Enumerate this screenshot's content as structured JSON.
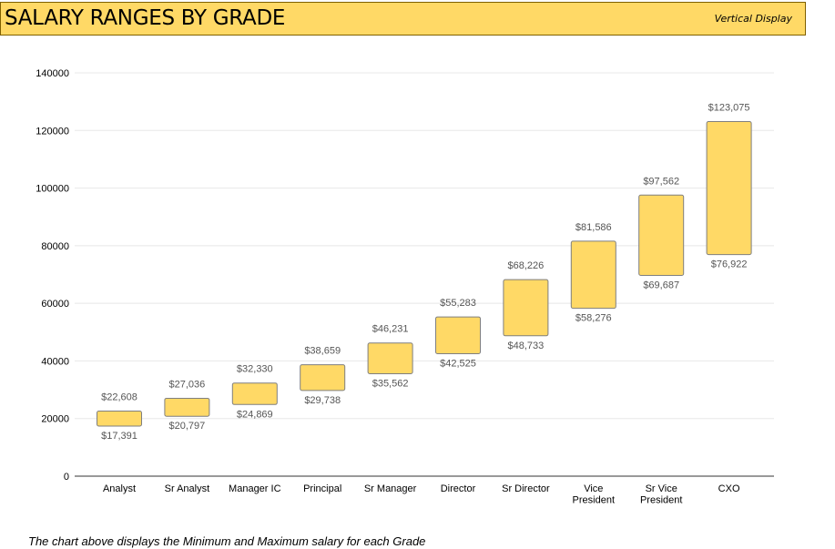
{
  "header": {
    "title": "SALARY RANGES BY GRADE",
    "display_mode": "Vertical Display"
  },
  "caption": "The chart above displays the Minimum and Maximum salary for each Grade",
  "chart_data": {
    "type": "bar",
    "subtype": "floating-range",
    "categories": [
      [
        "Analyst"
      ],
      [
        "Sr Analyst"
      ],
      [
        "Manager IC"
      ],
      [
        "Principal"
      ],
      [
        "Sr Manager"
      ],
      [
        "Director"
      ],
      [
        "Sr Director"
      ],
      [
        "Vice",
        "President"
      ],
      [
        "Sr Vice",
        "President"
      ],
      [
        "CXO"
      ]
    ],
    "series": [
      {
        "name": "Minimum",
        "values": [
          17391,
          20797,
          24869,
          29738,
          35562,
          42525,
          48733,
          58276,
          69687,
          76922
        ]
      },
      {
        "name": "Maximum",
        "values": [
          22608,
          27036,
          32330,
          38659,
          46231,
          55283,
          68226,
          81586,
          97562,
          123075
        ]
      }
    ],
    "min_labels": [
      "$17,391",
      "$20,797",
      "$24,869",
      "$29,738",
      "$35,562",
      "$42,525",
      "$48,733",
      "$58,276",
      "$69,687",
      "$76,922"
    ],
    "max_labels": [
      "$22,608",
      "$27,036",
      "$32,330",
      "$38,659",
      "$46,231",
      "$55,283",
      "$68,226",
      "$81,586",
      "$97,562",
      "$123,075"
    ],
    "yticks": [
      0,
      20000,
      40000,
      60000,
      80000,
      100000,
      120000,
      140000
    ],
    "ylim": [
      0,
      140000
    ],
    "grid": true,
    "colors": {
      "bar_fill": "#ffd966",
      "bar_stroke": "#7f7f7f",
      "grid": "#e8e8e8",
      "axis": "#333333",
      "label": "#555555"
    }
  }
}
